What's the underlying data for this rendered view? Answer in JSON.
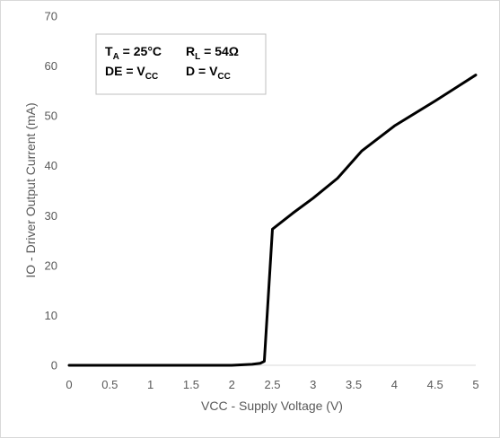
{
  "chart_data": {
    "type": "line",
    "title": "",
    "xlabel": "VCC - Supply Voltage (V)",
    "ylabel": "IO - Driver Output Current (mA)",
    "xlim": [
      0,
      5
    ],
    "ylim": [
      0,
      70
    ],
    "xticks": [
      0,
      0.5,
      1,
      1.5,
      2,
      2.5,
      3,
      3.5,
      4,
      4.5,
      5
    ],
    "xtick_labels": [
      "0",
      "0.5",
      "1",
      "1.5",
      "2",
      "2.5",
      "3",
      "3.5",
      "4",
      "4.5",
      "5"
    ],
    "yticks": [
      0,
      10,
      20,
      30,
      40,
      50,
      60,
      70
    ],
    "ytick_labels": [
      "0",
      "10",
      "20",
      "30",
      "40",
      "50",
      "60",
      "70"
    ],
    "grid": false,
    "series": [
      {
        "color": "#000000",
        "x": [
          0,
          0.5,
          1,
          1.5,
          2,
          2.25,
          2.35,
          2.4,
          2.5,
          2.75,
          3,
          3.3,
          3.6,
          4,
          4.5,
          5
        ],
        "y": [
          0,
          0,
          0,
          0,
          0,
          0.2,
          0.4,
          0.8,
          27.3,
          30.5,
          33.5,
          37.5,
          43,
          48,
          53,
          58.2
        ]
      }
    ],
    "annotation": {
      "line1_left": {
        "main": "T",
        "sub": "A",
        "rest": " = 25°C"
      },
      "line1_right": {
        "main": "R",
        "sub": "L",
        "rest": " = 54Ω"
      },
      "line2_left": {
        "main": "DE =  V",
        "sub": "CC"
      },
      "line2_right": {
        "main": "D =  V",
        "sub": "CC"
      }
    }
  }
}
